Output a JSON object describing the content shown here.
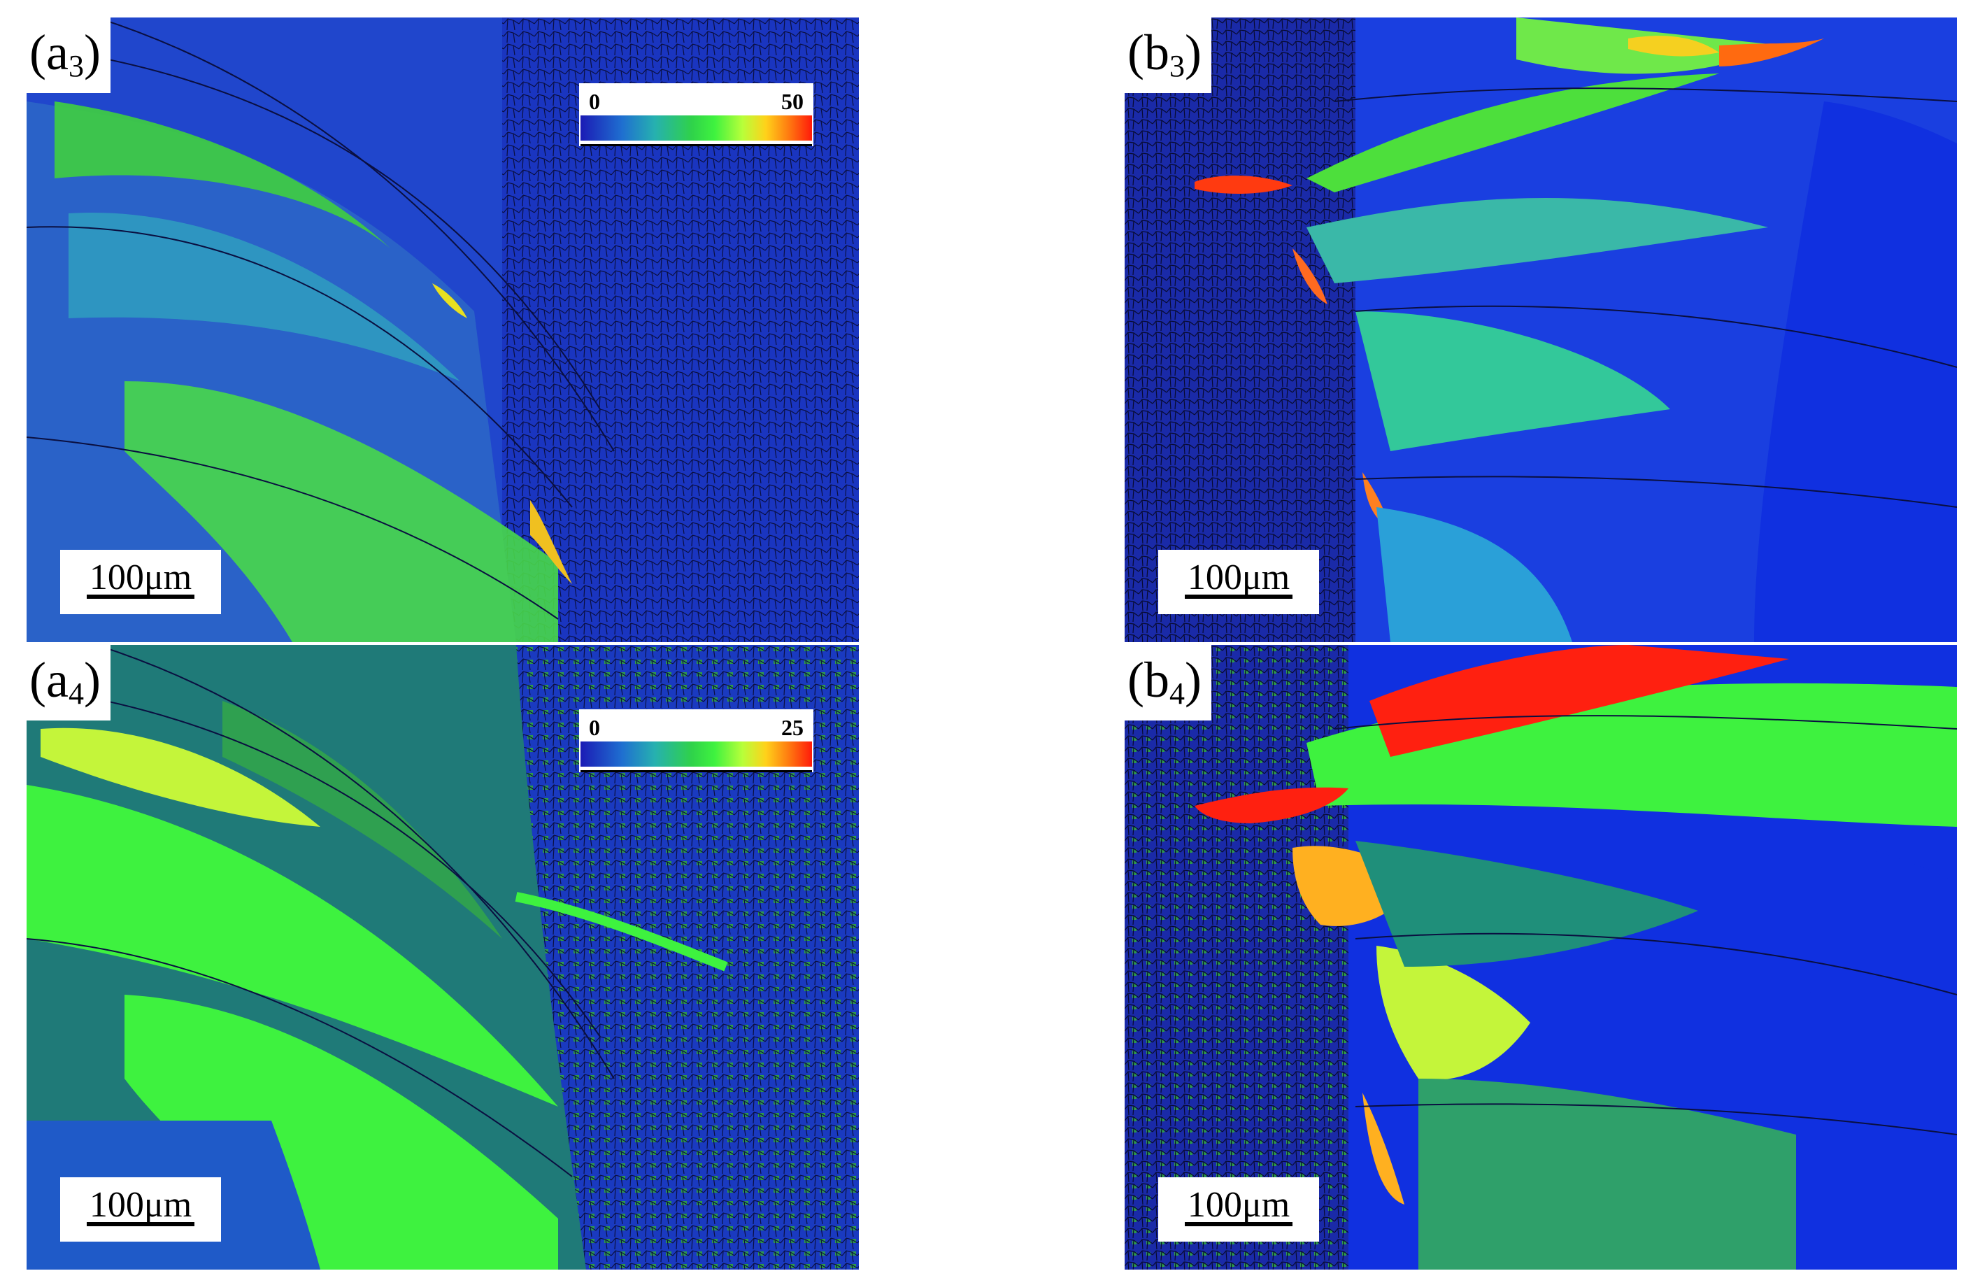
{
  "panels": {
    "a3": {
      "label_main": "(a",
      "label_sub": "3",
      "label_close": ")",
      "scale_text": "100μm"
    },
    "b3": {
      "label_main": "(b",
      "label_sub": "3",
      "label_close": ")",
      "scale_text": "100μm"
    },
    "a4": {
      "label_main": "(a",
      "label_sub": "4",
      "label_close": ")",
      "scale_text": "100μm"
    },
    "b4": {
      "label_main": "(b",
      "label_sub": "4",
      "label_close": ")",
      "scale_text": "100μm"
    }
  },
  "legends": {
    "a3": {
      "min": "0",
      "max": "50"
    },
    "a4": {
      "min": "0",
      "max": "25"
    }
  },
  "colors": {
    "fine_grain_blue": "#1a2fb5",
    "coarse_blue": "#1940d8",
    "teal": "#1f8f7a",
    "green": "#3ae63a",
    "yellow_green": "#c4f53a",
    "orange": "#ffb020",
    "red": "#ff1e0a"
  }
}
